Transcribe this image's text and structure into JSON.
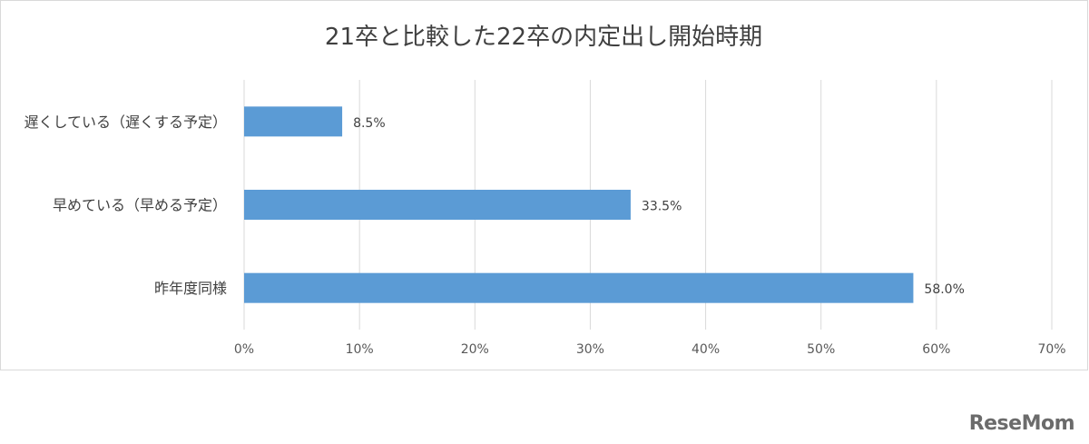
{
  "chart_data": {
    "type": "bar",
    "orientation": "horizontal",
    "title": "21卒と比較した22卒の内定出し開始時期",
    "categories": [
      "遅くしている（遅くする予定）",
      "早めている（早める予定）",
      "昨年度同様"
    ],
    "values": [
      8.5,
      33.5,
      58.0
    ],
    "data_labels": [
      "8.5%",
      "33.5%",
      "58.0%"
    ],
    "xlim": [
      0,
      70
    ],
    "x_ticks": [
      "0%",
      "10%",
      "20%",
      "30%",
      "40%",
      "50%",
      "60%",
      "70%"
    ],
    "grid": true,
    "legend": "none",
    "bar_color": "#5b9bd5"
  },
  "watermark": "ReseMom"
}
